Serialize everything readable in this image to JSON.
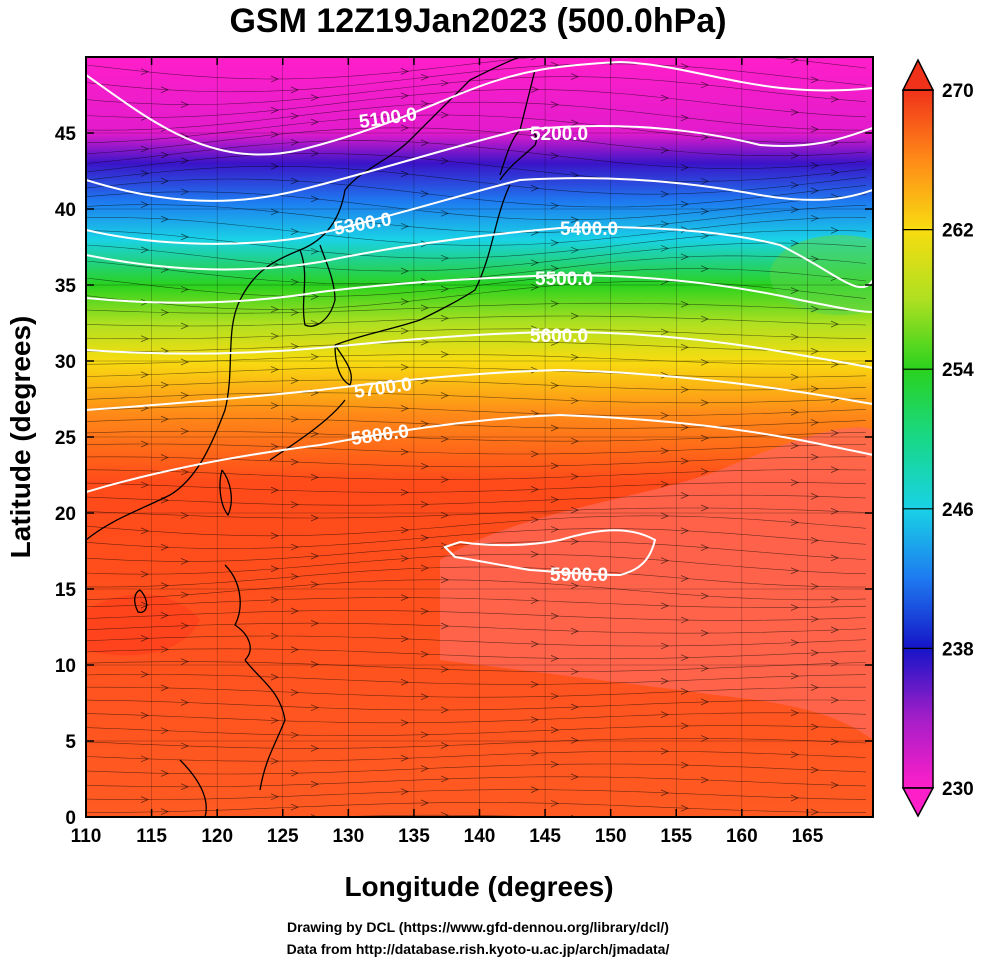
{
  "title": "GSM 12Z19Jan2023 (500.0hPa)",
  "xlabel": "Longitude (degrees)",
  "ylabel": "Latitude  (degrees)",
  "credits": {
    "line1": "Drawing by DCL (https://www.gfd-dennou.org/library/dcl/)",
    "line2": "Data from http://database.rish.kyoto-u.ac.jp/arch/jmadata/"
  },
  "x_ticks": [
    "110",
    "115",
    "120",
    "125",
    "130",
    "135",
    "140",
    "145",
    "150",
    "155",
    "160",
    "165"
  ],
  "y_ticks": [
    "0",
    "5",
    "10",
    "15",
    "20",
    "25",
    "30",
    "35",
    "40",
    "45"
  ],
  "colorbar": {
    "ticks": [
      "230",
      "238",
      "246",
      "254",
      "262",
      "270"
    ],
    "min": 230,
    "max": 270
  },
  "contour_labels": [
    "5100.0",
    "5200.0",
    "5300.0",
    "5400.0",
    "5500.0",
    "5600.0",
    "5700.0",
    "5800.0",
    "5900.0"
  ],
  "map": {
    "lon_range": [
      110,
      170
    ],
    "lat_range": [
      0,
      50
    ],
    "field": "temperature (K), colour shading",
    "contour_field": "geopotential height (m)",
    "vectors": "wind streamlines",
    "grid": true
  },
  "colors": {
    "c230": "#ff1fc9",
    "c234": "#7a10c8",
    "c238": "#1515c8",
    "c242": "#1e7af0",
    "c246": "#19d2e6",
    "c250": "#18d888",
    "c254": "#2ad21e",
    "c258": "#aee021",
    "c262": "#f8dc10",
    "c266": "#ff8a18",
    "c270": "#f0321a",
    "contour": "#ffffff",
    "coast": "#000000"
  }
}
